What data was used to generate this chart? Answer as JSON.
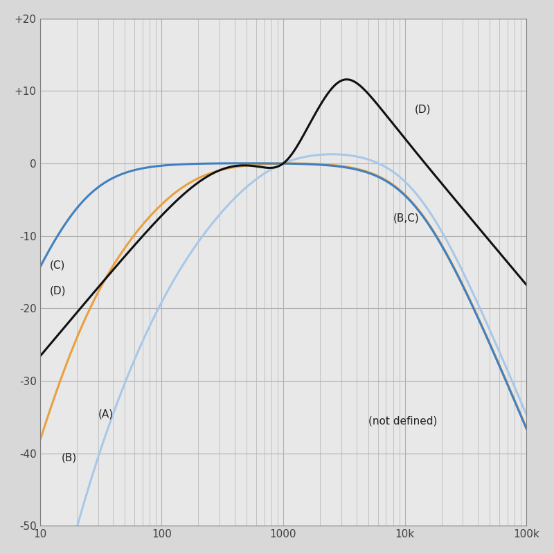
{
  "title": "",
  "xmin": 10,
  "xmax": 100000,
  "ymin": -50,
  "ymax": 20,
  "yticks": [
    -50,
    -40,
    -30,
    -20,
    -10,
    0,
    10,
    20
  ],
  "ytick_labels": [
    "-50",
    "-40",
    "-30",
    "-20",
    "-10",
    "0",
    "+10",
    "+20"
  ],
  "xticks": [
    10,
    100,
    1000,
    10000,
    100000
  ],
  "xtick_labels": [
    "10",
    "100",
    "1000",
    "10k",
    "100k"
  ],
  "background_color": "#d8d8d8",
  "plot_bg_color": "#e8e8e8",
  "grid_color": "#b0b0b0",
  "curve_A_color": "#a8c8e8",
  "curve_B_color": "#e8a040",
  "curve_C_color": "#4080c0",
  "curve_D_color": "#101010",
  "label_C": "(C)",
  "label_D_low": "(D)",
  "label_A": "(A)",
  "label_B": "(B)",
  "label_BC_high": "(B,C)",
  "label_D_high": "(D)",
  "label_not_defined": "(not defined)",
  "label_fontsize": 11,
  "tick_fontsize": 11,
  "linewidth": 2.2
}
